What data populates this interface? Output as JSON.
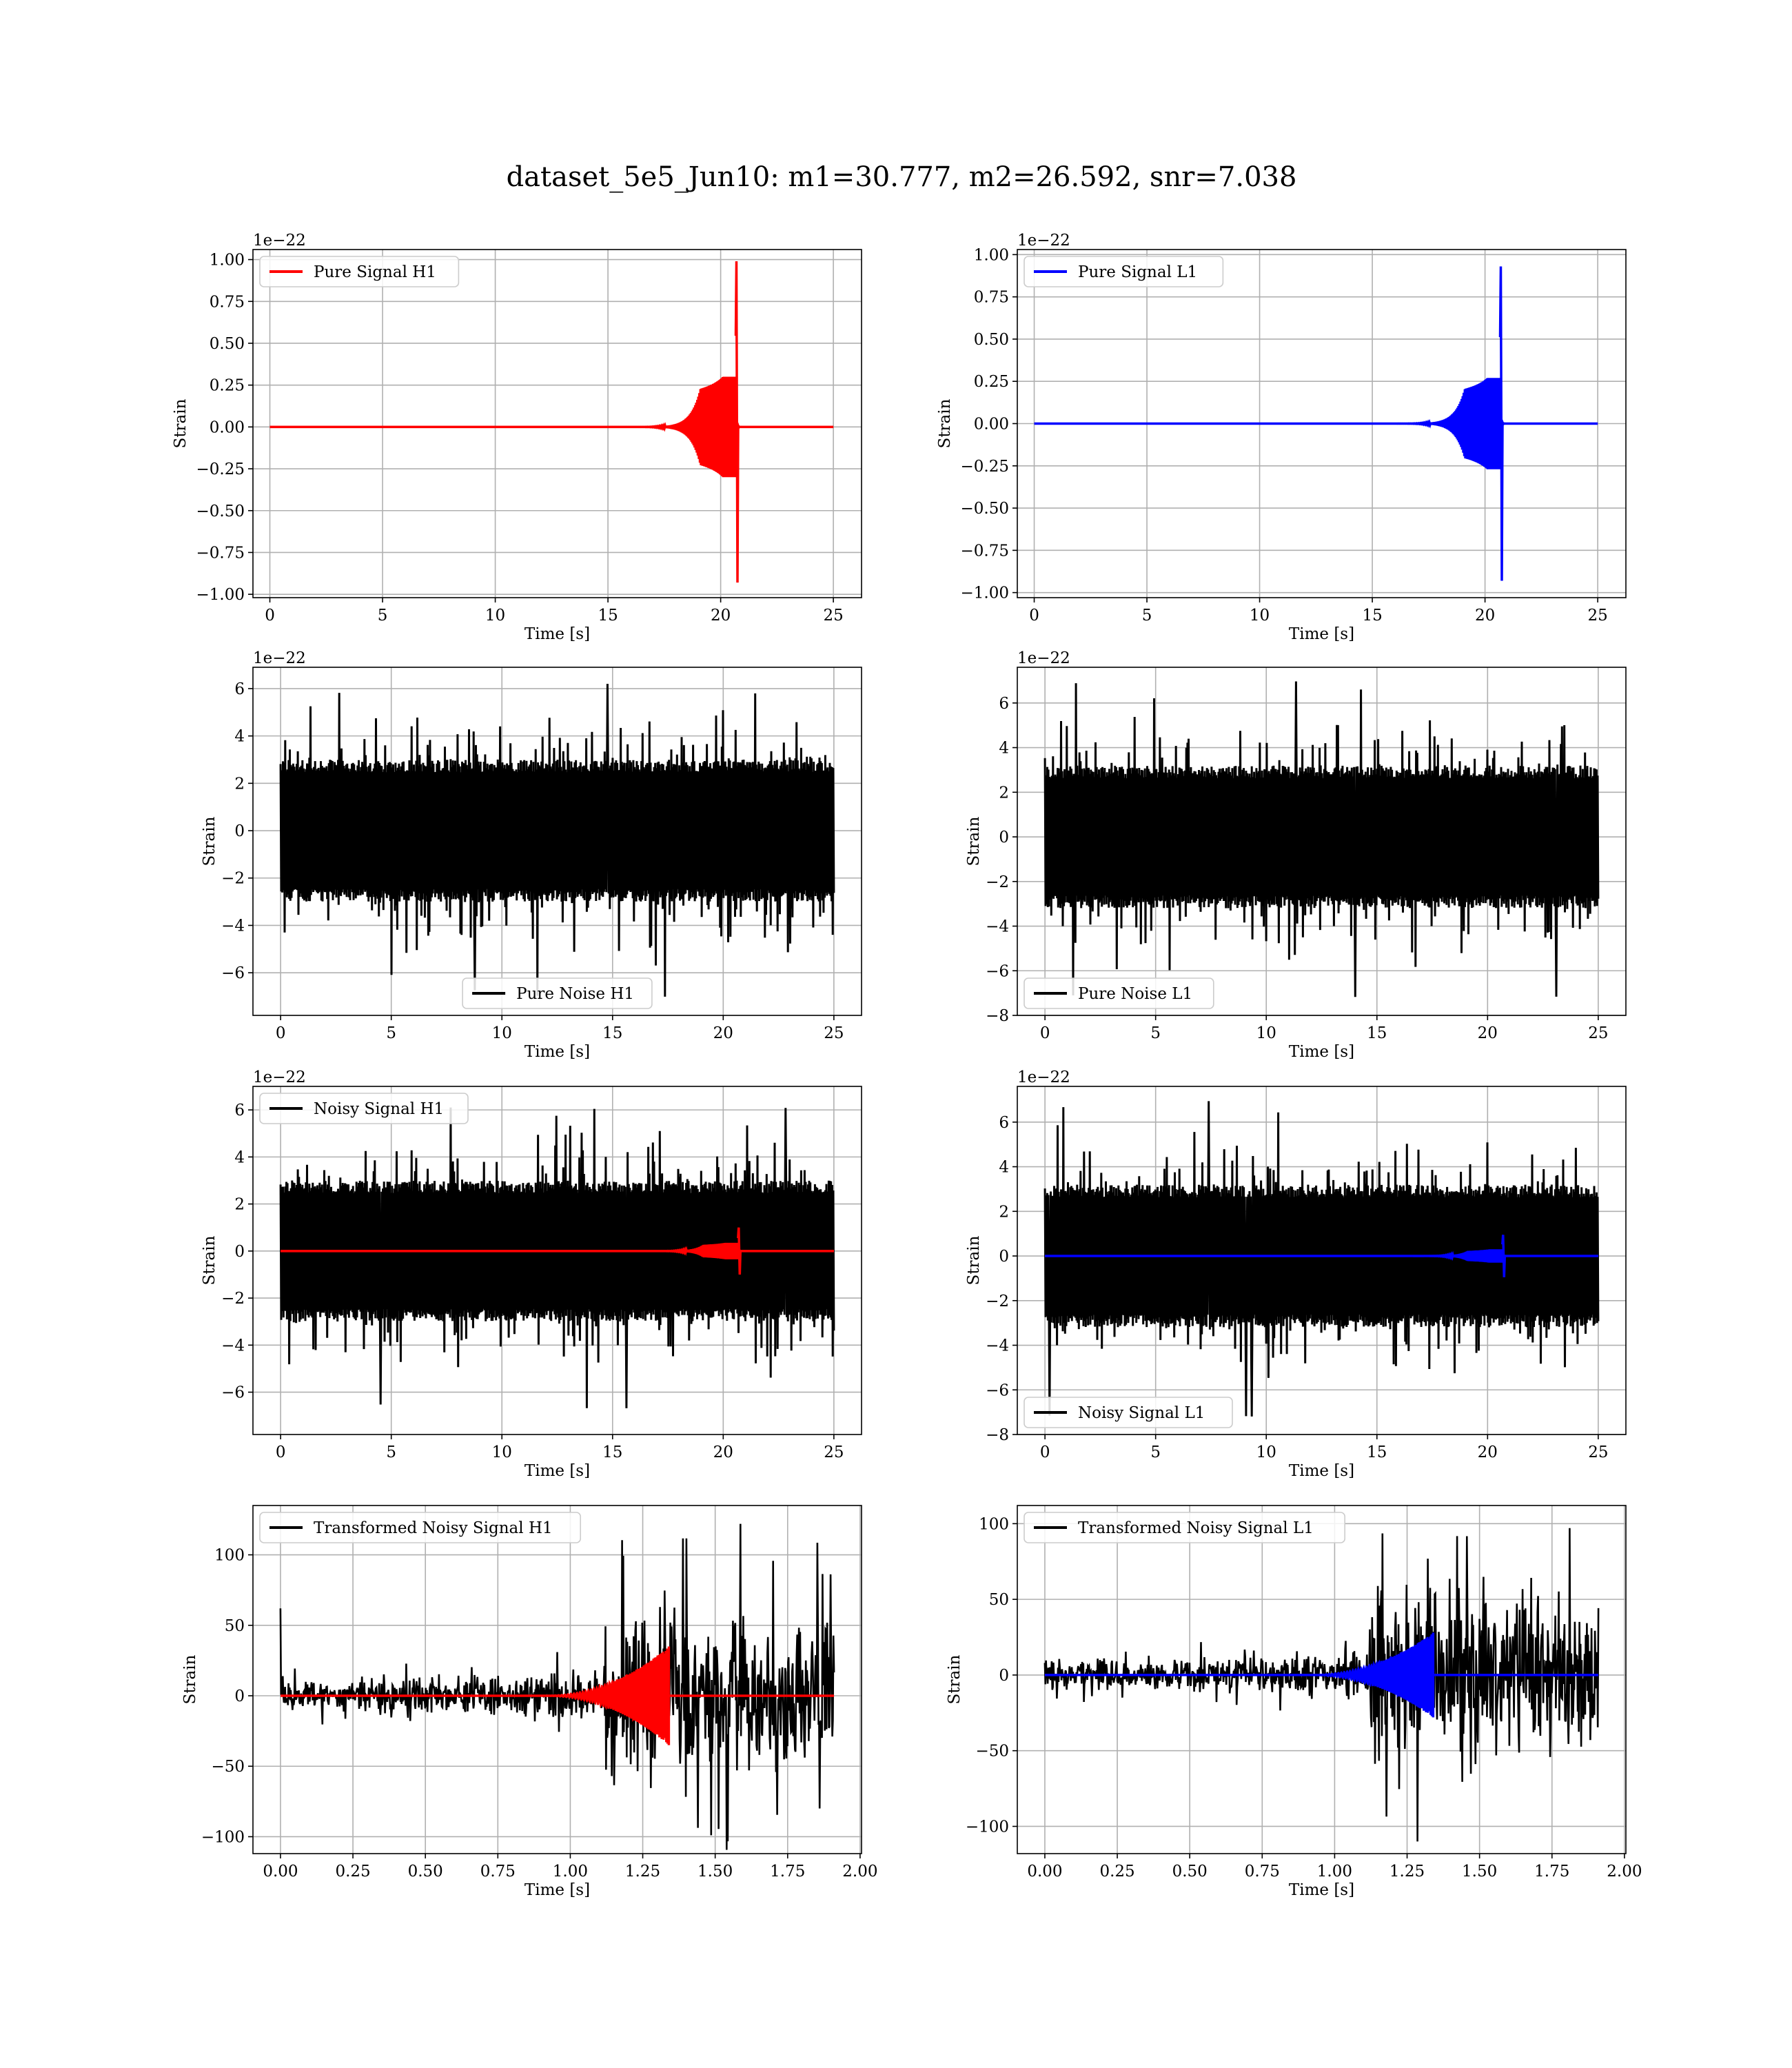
{
  "figure": {
    "title": "dataset_5e5_Jun10: m1=30.777, m2=26.592, snr=7.038"
  },
  "colors": {
    "h1_signal": "#ff0000",
    "l1_signal": "#0000ff",
    "noise": "#000000"
  },
  "chart_data": [
    {
      "id": "p0",
      "type": "line",
      "row": 0,
      "col": 0,
      "xlabel": "Time [s]",
      "ylabel": "Strain",
      "offset_label": "1e−22",
      "xlim": [
        -0.75,
        26.25
      ],
      "ylim": [
        -1.02,
        1.06
      ],
      "xticks": [
        0,
        5,
        10,
        15,
        20,
        25
      ],
      "xtick_labels": [
        "0",
        "5",
        "10",
        "15",
        "20",
        "25"
      ],
      "yticks": [
        -1.0,
        -0.75,
        -0.5,
        -0.25,
        0.0,
        0.25,
        0.5,
        0.75,
        1.0
      ],
      "ytick_labels": [
        "−1.00",
        "−0.75",
        "−0.50",
        "−0.25",
        "0.00",
        "0.25",
        "0.50",
        "0.75",
        "1.00"
      ],
      "legend": {
        "position": "upper-left",
        "entries": [
          {
            "name": "Pure Signal H1",
            "color": "#ff0000"
          }
        ]
      },
      "series": [
        {
          "name": "Pure Signal H1",
          "color": "#ff0000",
          "kind": "chirp",
          "x_range": [
            0,
            25
          ],
          "merger_time": 20.7,
          "peak_pos": 0.99,
          "peak_neg": -0.93,
          "inspiral_amp": 0.3
        }
      ]
    },
    {
      "id": "p1",
      "type": "line",
      "row": 0,
      "col": 1,
      "xlabel": "Time [s]",
      "ylabel": "Strain",
      "offset_label": "1e−22",
      "xlim": [
        -0.75,
        26.25
      ],
      "ylim": [
        -1.03,
        1.03
      ],
      "xticks": [
        0,
        5,
        10,
        15,
        20,
        25
      ],
      "xtick_labels": [
        "0",
        "5",
        "10",
        "15",
        "20",
        "25"
      ],
      "yticks": [
        -1.0,
        -0.75,
        -0.5,
        -0.25,
        0.0,
        0.25,
        0.5,
        0.75,
        1.0
      ],
      "ytick_labels": [
        "−1.00",
        "−0.75",
        "−0.50",
        "−0.25",
        "0.00",
        "0.25",
        "0.50",
        "0.75",
        "1.00"
      ],
      "legend": {
        "position": "upper-left",
        "entries": [
          {
            "name": "Pure Signal L1",
            "color": "#0000ff"
          }
        ]
      },
      "series": [
        {
          "name": "Pure Signal L1",
          "color": "#0000ff",
          "kind": "chirp",
          "x_range": [
            0,
            25
          ],
          "merger_time": 20.7,
          "peak_pos": 0.93,
          "peak_neg": -0.93,
          "inspiral_amp": 0.27
        }
      ]
    },
    {
      "id": "p2",
      "type": "line",
      "row": 1,
      "col": 0,
      "xlabel": "Time [s]",
      "ylabel": "Strain",
      "offset_label": "1e−22",
      "xlim": [
        -1.25,
        26.25
      ],
      "ylim": [
        -7.8,
        6.9
      ],
      "xticks": [
        0,
        5,
        10,
        15,
        20,
        25
      ],
      "xtick_labels": [
        "0",
        "5",
        "10",
        "15",
        "20",
        "25"
      ],
      "yticks": [
        -6,
        -4,
        -2,
        0,
        2,
        4,
        6
      ],
      "ytick_labels": [
        "−6",
        "−4",
        "−2",
        "0",
        "2",
        "4",
        "6"
      ],
      "legend": {
        "position": "lower-center",
        "entries": [
          {
            "name": "Pure Noise H1",
            "color": "#000000"
          }
        ]
      },
      "series": [
        {
          "name": "Pure Noise H1",
          "color": "#000000",
          "kind": "noise",
          "x_range": [
            0,
            25
          ],
          "core": 3.0,
          "peak_max": 6.4,
          "peak_min": -7.2
        }
      ]
    },
    {
      "id": "p3",
      "type": "line",
      "row": 1,
      "col": 1,
      "xlabel": "Time [s]",
      "ylabel": "Strain",
      "offset_label": "1e−22",
      "xlim": [
        -1.25,
        26.25
      ],
      "ylim": [
        -8.0,
        7.6
      ],
      "xticks": [
        0,
        5,
        10,
        15,
        20,
        25
      ],
      "xtick_labels": [
        "0",
        "5",
        "10",
        "15",
        "20",
        "25"
      ],
      "yticks": [
        -8,
        -6,
        -4,
        -2,
        0,
        2,
        4,
        6
      ],
      "ytick_labels": [
        "−8",
        "−6",
        "−4",
        "−2",
        "0",
        "2",
        "4",
        "6"
      ],
      "legend": {
        "position": "lower-left",
        "entries": [
          {
            "name": "Pure Noise L1",
            "color": "#000000"
          }
        ]
      },
      "series": [
        {
          "name": "Pure Noise L1",
          "color": "#000000",
          "kind": "noise",
          "x_range": [
            0,
            25
          ],
          "core": 3.2,
          "peak_max": 7.0,
          "peak_min": -7.3
        }
      ]
    },
    {
      "id": "p4",
      "type": "line",
      "row": 2,
      "col": 0,
      "xlabel": "Time [s]",
      "ylabel": "Strain",
      "offset_label": "1e−22",
      "xlim": [
        -1.25,
        26.25
      ],
      "ylim": [
        -7.8,
        7.0
      ],
      "xticks": [
        0,
        5,
        10,
        15,
        20,
        25
      ],
      "xtick_labels": [
        "0",
        "5",
        "10",
        "15",
        "20",
        "25"
      ],
      "yticks": [
        -6,
        -4,
        -2,
        0,
        2,
        4,
        6
      ],
      "ytick_labels": [
        "−6",
        "−4",
        "−2",
        "0",
        "2",
        "4",
        "6"
      ],
      "legend": {
        "position": "upper-left",
        "entries": [
          {
            "name": "Noisy Signal H1",
            "color": "#000000"
          }
        ]
      },
      "series": [
        {
          "name": "Noisy Signal H1",
          "color": "#000000",
          "kind": "noise",
          "x_range": [
            0,
            25
          ],
          "core": 3.0,
          "peak_max": 6.7,
          "peak_min": -7.2
        },
        {
          "name": "",
          "color": "#ff0000",
          "kind": "chirp",
          "x_range": [
            0,
            25
          ],
          "merger_time": 20.7,
          "peak_pos": 1.0,
          "peak_neg": -1.0,
          "inspiral_amp": 0.35
        }
      ]
    },
    {
      "id": "p5",
      "type": "line",
      "row": 2,
      "col": 1,
      "xlabel": "Time [s]",
      "ylabel": "Strain",
      "offset_label": "1e−22",
      "xlim": [
        -1.25,
        26.25
      ],
      "ylim": [
        -8.0,
        7.6
      ],
      "xticks": [
        0,
        5,
        10,
        15,
        20,
        25
      ],
      "xtick_labels": [
        "0",
        "5",
        "10",
        "15",
        "20",
        "25"
      ],
      "yticks": [
        -8,
        -6,
        -4,
        -2,
        0,
        2,
        4,
        6
      ],
      "ytick_labels": [
        "−8",
        "−6",
        "−4",
        "−2",
        "0",
        "2",
        "4",
        "6"
      ],
      "legend": {
        "position": "lower-left",
        "entries": [
          {
            "name": "Noisy Signal L1",
            "color": "#000000"
          }
        ]
      },
      "series": [
        {
          "name": "Noisy Signal L1",
          "color": "#000000",
          "kind": "noise",
          "x_range": [
            0,
            25
          ],
          "core": 3.2,
          "peak_max": 7.0,
          "peak_min": -7.3
        },
        {
          "name": "",
          "color": "#0000ff",
          "kind": "chirp",
          "x_range": [
            0,
            25
          ],
          "merger_time": 20.7,
          "peak_pos": 0.95,
          "peak_neg": -0.95,
          "inspiral_amp": 0.3
        }
      ]
    },
    {
      "id": "p6",
      "type": "line",
      "row": 3,
      "col": 0,
      "xlabel": "Time [s]",
      "ylabel": "Strain",
      "offset_label": "",
      "xlim": [
        -0.095,
        2.005
      ],
      "ylim": [
        -112,
        135
      ],
      "xticks": [
        0,
        0.25,
        0.5,
        0.75,
        1.0,
        1.25,
        1.5,
        1.75,
        2.0
      ],
      "xtick_labels": [
        "0.00",
        "0.25",
        "0.50",
        "0.75",
        "1.00",
        "1.25",
        "1.50",
        "1.75",
        "2.00"
      ],
      "yticks": [
        -100,
        -50,
        0,
        50,
        100
      ],
      "ytick_labels": [
        "−100",
        "−50",
        "0",
        "50",
        "100"
      ],
      "legend": {
        "position": "upper-left",
        "entries": [
          {
            "name": "Transformed Noisy Signal H1",
            "color": "#000000"
          }
        ]
      },
      "series": [
        {
          "name": "Transformed Noisy Signal H1",
          "color": "#000000",
          "kind": "whitened",
          "x_range": [
            0,
            1.91
          ],
          "early_amp": 8,
          "late_amp": 55,
          "jump_time": 1.12,
          "peak_max": 124,
          "peak_min": -110,
          "spike_time": 0.0,
          "spike_val": 62
        },
        {
          "name": "",
          "color": "#ff0000",
          "kind": "whitened_chirp",
          "x_range": [
            0,
            1.91
          ],
          "merger_time": 1.34,
          "peak": 35,
          "start_time": 0.9
        }
      ]
    },
    {
      "id": "p7",
      "type": "line",
      "row": 3,
      "col": 1,
      "xlabel": "Time [s]",
      "ylabel": "Strain",
      "offset_label": "",
      "xlim": [
        -0.095,
        2.005
      ],
      "ylim": [
        -118,
        112
      ],
      "xticks": [
        0,
        0.25,
        0.5,
        0.75,
        1.0,
        1.25,
        1.5,
        1.75,
        2.0
      ],
      "xtick_labels": [
        "0.00",
        "0.25",
        "0.50",
        "0.75",
        "1.00",
        "1.25",
        "1.50",
        "1.75",
        "2.00"
      ],
      "yticks": [
        -100,
        -50,
        0,
        50,
        100
      ],
      "ytick_labels": [
        "−100",
        "−50",
        "0",
        "50",
        "100"
      ],
      "legend": {
        "position": "upper-left",
        "entries": [
          {
            "name": "Transformed Noisy Signal L1",
            "color": "#000000"
          }
        ]
      },
      "series": [
        {
          "name": "Transformed Noisy Signal L1",
          "color": "#000000",
          "kind": "whitened",
          "x_range": [
            0,
            1.91
          ],
          "early_amp": 7,
          "late_amp": 52,
          "jump_time": 1.12,
          "peak_max": 102,
          "peak_min": -110,
          "spike_time": 0.0,
          "spike_val": 8
        },
        {
          "name": "",
          "color": "#0000ff",
          "kind": "whitened_chirp",
          "x_range": [
            0,
            1.91
          ],
          "merger_time": 1.34,
          "peak": 28,
          "start_time": 0.9
        }
      ]
    }
  ]
}
